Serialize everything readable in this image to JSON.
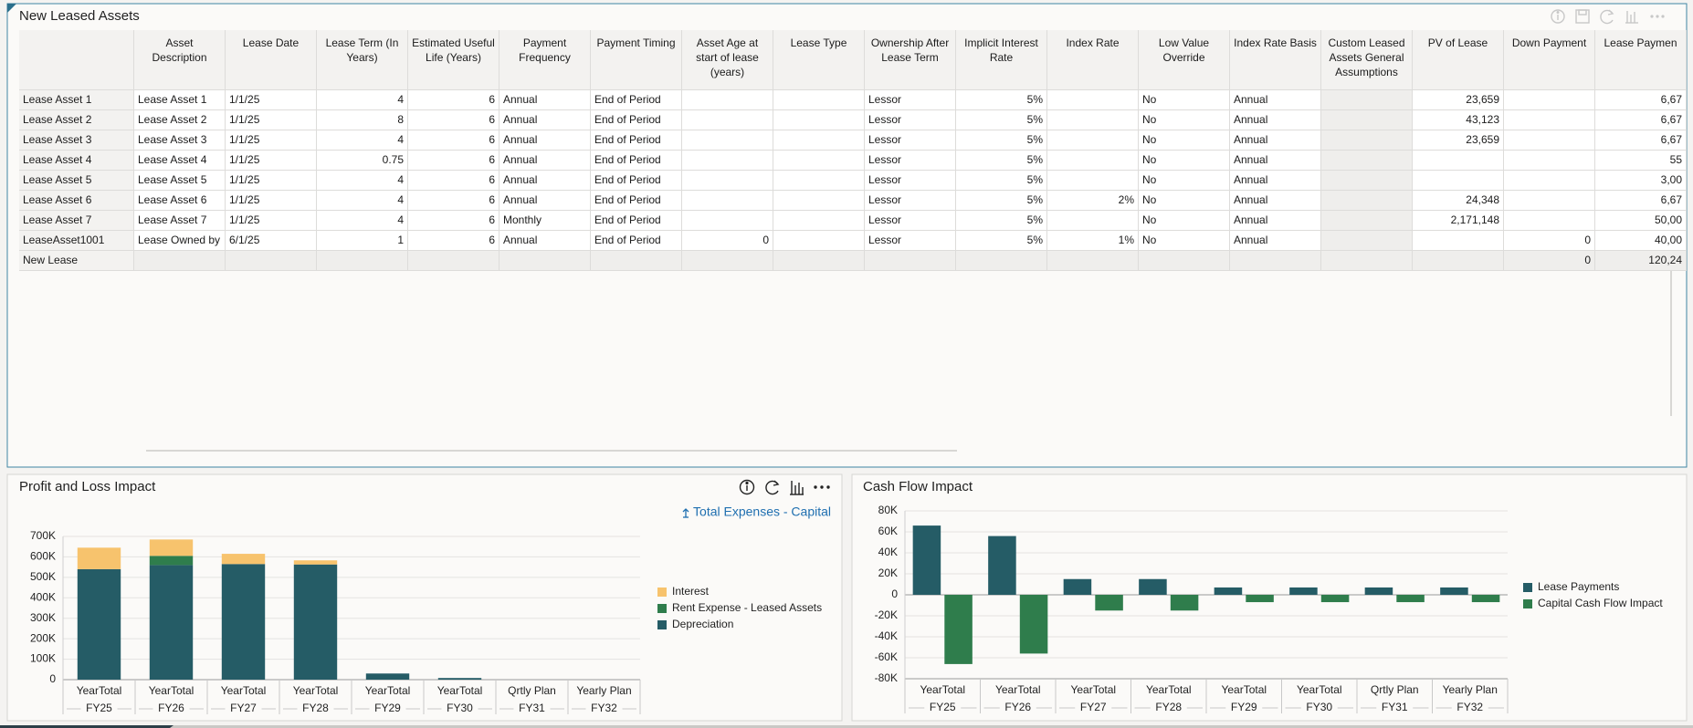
{
  "table": {
    "title": "New Leased Assets",
    "columns": [
      "Asset Description",
      "Lease Date",
      "Lease Term (In Years)",
      "Estimated Useful Life (Years)",
      "Payment Frequency",
      "Payment Timing",
      "Asset Age at start of lease (years)",
      "Lease Type",
      "Ownership After Lease Term",
      "Implicit Interest Rate",
      "Index Rate",
      "Low Value Override",
      "Index Rate Basis",
      "Custom Leased Assets General Assumptions",
      "PV of Lease",
      "Down Payment",
      "Lease Paymen"
    ],
    "rows": [
      {
        "header": "Lease Asset 1",
        "cells": [
          "Lease Asset 1",
          "1/1/25",
          "4",
          "6",
          "Annual",
          "End of Period",
          null,
          null,
          "Lessor",
          "5%",
          null,
          "No",
          "Annual",
          null,
          "23,659",
          null,
          "6,67"
        ]
      },
      {
        "header": "Lease Asset 2",
        "cells": [
          "Lease Asset 2",
          "1/1/25",
          "8",
          "6",
          "Annual",
          "End of Period",
          null,
          null,
          "Lessor",
          "5%",
          null,
          "No",
          "Annual",
          null,
          "43,123",
          null,
          "6,67"
        ]
      },
      {
        "header": "Lease Asset 3",
        "cells": [
          "Lease Asset 3",
          "1/1/25",
          "4",
          "6",
          "Annual",
          "End of Period",
          null,
          null,
          "Lessor",
          "5%",
          null,
          "No",
          "Annual",
          null,
          "23,659",
          null,
          "6,67"
        ]
      },
      {
        "header": "Lease Asset 4",
        "cells": [
          "Lease Asset 4",
          "1/1/25",
          "0.75",
          "6",
          "Annual",
          "End of Period",
          null,
          null,
          "Lessor",
          "5%",
          null,
          "No",
          "Annual",
          null,
          null,
          null,
          "55"
        ]
      },
      {
        "header": "Lease Asset 5",
        "cells": [
          "Lease Asset 5",
          "1/1/25",
          "4",
          "6",
          "Annual",
          "End of Period",
          null,
          null,
          "Lessor",
          "5%",
          null,
          "No",
          "Annual",
          null,
          null,
          null,
          "3,00"
        ]
      },
      {
        "header": "Lease Asset 6",
        "cells": [
          "Lease Asset 6",
          "1/1/25",
          "4",
          "6",
          "Annual",
          "End of Period",
          null,
          null,
          "Lessor",
          "5%",
          "2%",
          "No",
          "Annual",
          null,
          "24,348",
          null,
          "6,67"
        ]
      },
      {
        "header": "Lease Asset 7",
        "cells": [
          "Lease Asset 7",
          "1/1/25",
          "4",
          "6",
          "Monthly",
          "End of Period",
          null,
          null,
          "Lessor",
          "5%",
          null,
          "No",
          "Annual",
          null,
          "2,171,148",
          null,
          "50,00"
        ]
      },
      {
        "header": "LeaseAsset1001",
        "cells": [
          "Lease Owned by",
          "6/1/25",
          "1",
          "6",
          "Annual",
          "End of Period",
          "0",
          null,
          "Lessor",
          "5%",
          "1%",
          "No",
          "Annual",
          null,
          null,
          "0",
          "40,00"
        ]
      },
      {
        "header": "New Lease",
        "cells": [
          null,
          null,
          null,
          null,
          null,
          null,
          null,
          null,
          null,
          null,
          null,
          null,
          null,
          null,
          null,
          "0",
          "120,24"
        ]
      }
    ]
  },
  "chart_data": [
    {
      "type": "bar",
      "title": "Profit and Loss Impact",
      "annotation": "Total Expenses - Capital",
      "stacked": true,
      "categories": [
        "YearTotal",
        "YearTotal",
        "YearTotal",
        "YearTotal",
        "YearTotal",
        "YearTotal",
        "Qrtly Plan",
        "Yearly Plan"
      ],
      "category_groups": [
        "FY25",
        "FY26",
        "FY27",
        "FY28",
        "FY29",
        "FY30",
        "FY31",
        "FY32"
      ],
      "series": [
        {
          "name": "Depreciation",
          "color": "#255c66",
          "values": [
            540000,
            560000,
            565000,
            563000,
            30000,
            8000,
            0,
            0
          ]
        },
        {
          "name": "Rent Expense - Leased Assets",
          "color": "#2f7d4c",
          "values": [
            0,
            45000,
            0,
            0,
            0,
            0,
            0,
            0
          ]
        },
        {
          "name": "Interest",
          "color": "#f7c36d",
          "values": [
            105000,
            80000,
            50000,
            20000,
            0,
            0,
            0,
            0
          ]
        }
      ],
      "ylim": [
        0,
        700000
      ],
      "yticks": [
        0,
        {
          "value": 100000,
          "label": "100K"
        },
        {
          "value": 200000,
          "label": "200K"
        },
        {
          "value": 300000,
          "label": "300K"
        },
        {
          "value": 400000,
          "label": "400K"
        },
        {
          "value": 500000,
          "label": "500K"
        },
        {
          "value": 600000,
          "label": "600K"
        },
        {
          "value": 700000,
          "label": "700K"
        }
      ],
      "grid": true,
      "legend": "right"
    },
    {
      "type": "bar",
      "title": "Cash Flow Impact",
      "stacked": false,
      "categories": [
        "YearTotal",
        "YearTotal",
        "YearTotal",
        "YearTotal",
        "YearTotal",
        "YearTotal",
        "Qrtly Plan",
        "Yearly Plan"
      ],
      "category_groups": [
        "FY25",
        "FY26",
        "FY27",
        "FY28",
        "FY29",
        "FY30",
        "FY31",
        "FY32"
      ],
      "series": [
        {
          "name": "Lease Payments",
          "color": "#255c66",
          "values": [
            66000,
            56000,
            15000,
            15000,
            7000,
            7000,
            7000,
            7000
          ]
        },
        {
          "name": "Capital Cash Flow Impact",
          "color": "#2f7d4c",
          "values": [
            -66000,
            -56000,
            -15000,
            -15000,
            -7000,
            -7000,
            -7000,
            -7000
          ]
        }
      ],
      "ylim": [
        -80000,
        80000
      ],
      "yticks": [
        {
          "value": -80000,
          "label": "-80K"
        },
        {
          "value": -60000,
          "label": "-60K"
        },
        {
          "value": -40000,
          "label": "-40K"
        },
        {
          "value": -20000,
          "label": "-20K"
        },
        0,
        {
          "value": 20000,
          "label": "20K"
        },
        {
          "value": 40000,
          "label": "40K"
        },
        {
          "value": 60000,
          "label": "60K"
        },
        {
          "value": 80000,
          "label": "80K"
        }
      ],
      "grid": true,
      "legend": "right"
    }
  ]
}
